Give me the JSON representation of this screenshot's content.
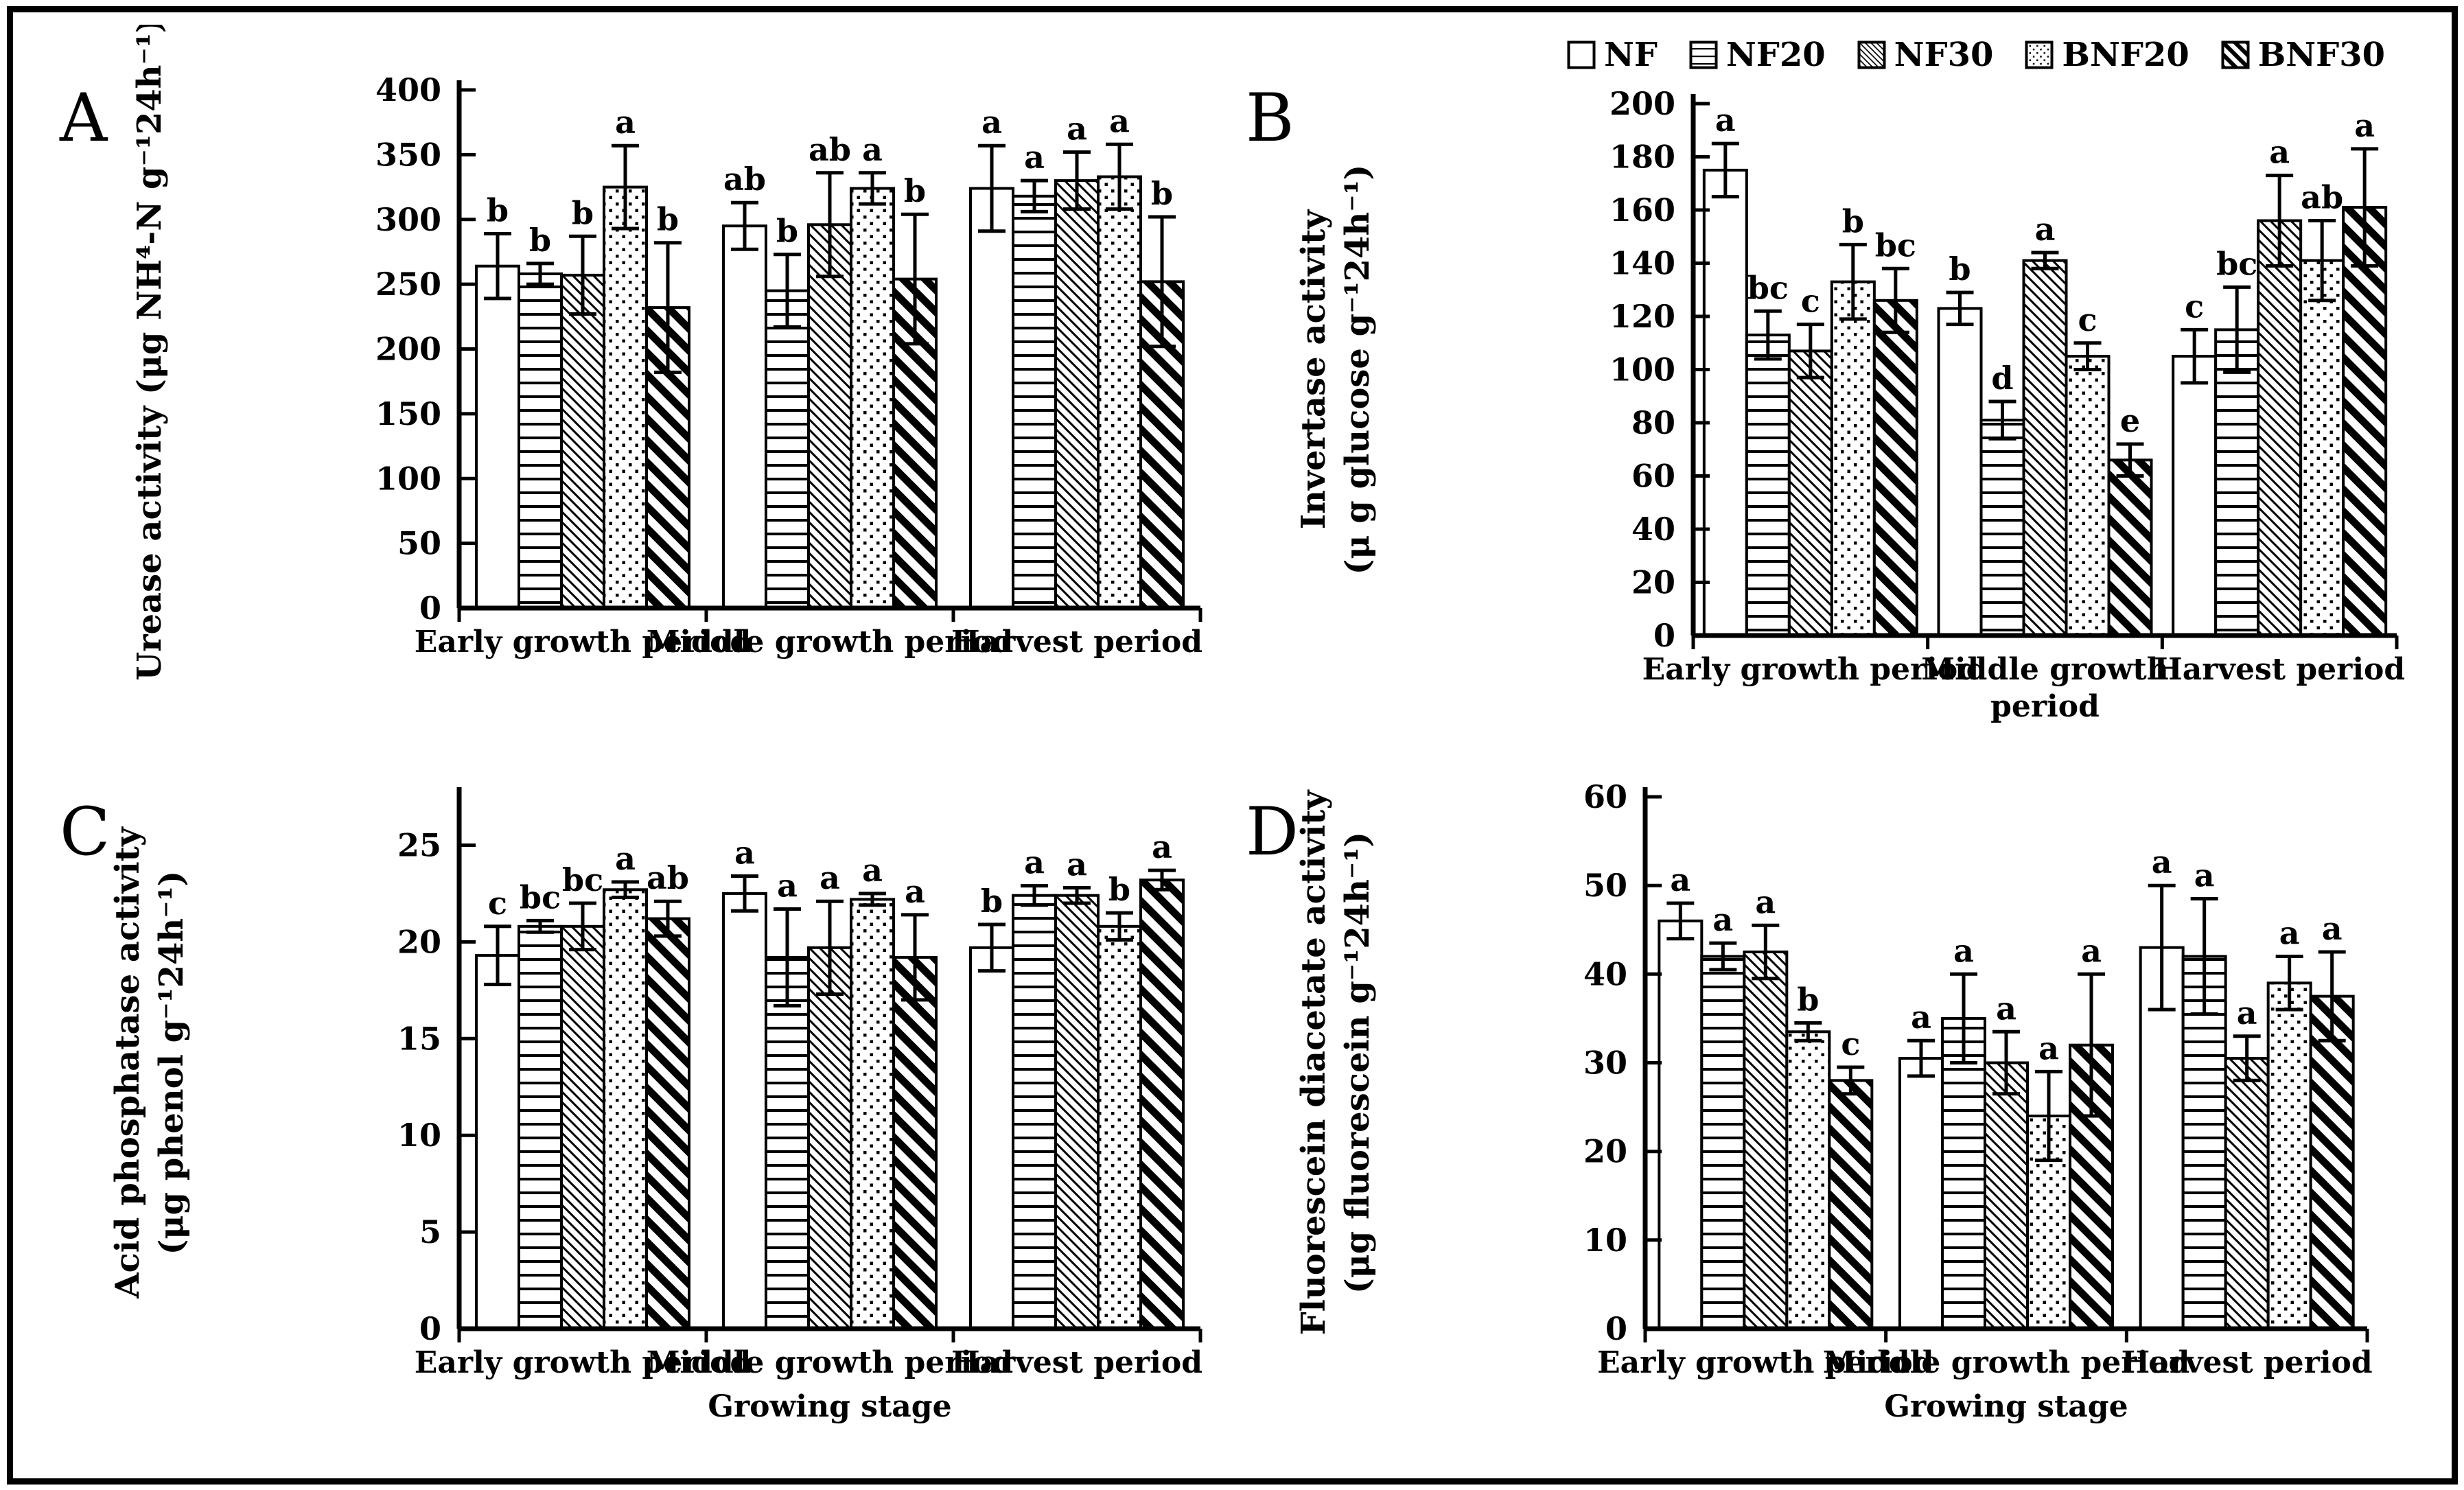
{
  "legend": {
    "items": [
      {
        "label": "NF",
        "pattern": "plain"
      },
      {
        "label": "NF20",
        "pattern": "horizontal-lines"
      },
      {
        "label": "NF30",
        "pattern": "thin-diagonal"
      },
      {
        "label": "BNF20",
        "pattern": "dots"
      },
      {
        "label": "BNF30",
        "pattern": "thick-diagonal"
      }
    ]
  },
  "treatments": [
    "NF",
    "NF20",
    "NF30",
    "BNF20",
    "BNF30"
  ],
  "colors": {
    "ink": "#000000",
    "paper": "#ffffff"
  },
  "chart_data": [
    {
      "type": "bar",
      "panel_letter": "A",
      "ylabel_lines": [
        "Urease activity  (μg NH⁴-N g⁻¹24h⁻¹)"
      ],
      "xlabel": "",
      "ylim": [
        0,
        400
      ],
      "ytick_step": 50,
      "yticks": [
        0,
        50,
        100,
        150,
        200,
        250,
        300,
        350,
        400
      ],
      "grid": false,
      "legend_position": "top-right-of-figure",
      "categories": [
        "Early growth period",
        "Middle growth period",
        "Harvest period"
      ],
      "groups": [
        {
          "category_lines": [
            "Early growth period"
          ],
          "bars": [
            {
              "treatment": "NF",
              "v": 264,
              "e": 25,
              "sig": "b"
            },
            {
              "treatment": "NF20",
              "v": 258,
              "e": 8,
              "sig": "b"
            },
            {
              "treatment": "NF30",
              "v": 257,
              "e": 30,
              "sig": "b"
            },
            {
              "treatment": "BNF20",
              "v": 325,
              "e": 32,
              "sig": "a"
            },
            {
              "treatment": "BNF30",
              "v": 232,
              "e": 50,
              "sig": "b"
            }
          ]
        },
        {
          "category_lines": [
            "Middle growth period"
          ],
          "bars": [
            {
              "treatment": "NF",
              "v": 295,
              "e": 18,
              "sig": "ab"
            },
            {
              "treatment": "NF20",
              "v": 245,
              "e": 28,
              "sig": "b"
            },
            {
              "treatment": "NF30",
              "v": 296,
              "e": 40,
              "sig": "ab"
            },
            {
              "treatment": "BNF20",
              "v": 324,
              "e": 12,
              "sig": "a"
            },
            {
              "treatment": "BNF30",
              "v": 254,
              "e": 50,
              "sig": "b"
            }
          ]
        },
        {
          "category_lines": [
            "Harvest period"
          ],
          "bars": [
            {
              "treatment": "NF",
              "v": 324,
              "e": 33,
              "sig": "a"
            },
            {
              "treatment": "NF20",
              "v": 318,
              "e": 12,
              "sig": "a"
            },
            {
              "treatment": "NF30",
              "v": 330,
              "e": 22,
              "sig": "a"
            },
            {
              "treatment": "BNF20",
              "v": 333,
              "e": 25,
              "sig": "a"
            },
            {
              "treatment": "BNF30",
              "v": 252,
              "e": 50,
              "sig": "b"
            }
          ]
        }
      ]
    },
    {
      "type": "bar",
      "panel_letter": "B",
      "ylabel_lines": [
        "Invertase activity",
        "(μ g glucose g⁻¹24h⁻¹)"
      ],
      "xlabel": "",
      "ylim": [
        0,
        200
      ],
      "ytick_step": 20,
      "yticks": [
        0,
        20,
        40,
        60,
        80,
        100,
        120,
        140,
        160,
        180,
        200
      ],
      "grid": false,
      "categories": [
        "Early growth period",
        "Middle growth period",
        "Harvest period"
      ],
      "groups": [
        {
          "category_lines": [
            "Early growth period"
          ],
          "bars": [
            {
              "treatment": "NF",
              "v": 175,
              "e": 10,
              "sig": "a"
            },
            {
              "treatment": "NF20",
              "v": 113,
              "e": 9,
              "sig": "bc"
            },
            {
              "treatment": "NF30",
              "v": 107,
              "e": 10,
              "sig": "c"
            },
            {
              "treatment": "BNF20",
              "v": 133,
              "e": 14,
              "sig": "b"
            },
            {
              "treatment": "BNF30",
              "v": 126,
              "e": 12,
              "sig": "bc"
            }
          ]
        },
        {
          "category_lines": [
            "Middle growth",
            "period"
          ],
          "bars": [
            {
              "treatment": "NF",
              "v": 123,
              "e": 6,
              "sig": "b"
            },
            {
              "treatment": "NF20",
              "v": 81,
              "e": 7,
              "sig": "d"
            },
            {
              "treatment": "NF30",
              "v": 141,
              "e": 3,
              "sig": "a"
            },
            {
              "treatment": "BNF20",
              "v": 105,
              "e": 5,
              "sig": "c"
            },
            {
              "treatment": "BNF30",
              "v": 66,
              "e": 6,
              "sig": "e"
            }
          ]
        },
        {
          "category_lines": [
            "Harvest period"
          ],
          "bars": [
            {
              "treatment": "NF",
              "v": 105,
              "e": 10,
              "sig": "c"
            },
            {
              "treatment": "NF20",
              "v": 115,
              "e": 16,
              "sig": "bc"
            },
            {
              "treatment": "NF30",
              "v": 156,
              "e": 17,
              "sig": "a"
            },
            {
              "treatment": "BNF20",
              "v": 141,
              "e": 15,
              "sig": "ab"
            },
            {
              "treatment": "BNF30",
              "v": 161,
              "e": 22,
              "sig": "a"
            }
          ]
        }
      ]
    },
    {
      "type": "bar",
      "panel_letter": "C",
      "ylabel_lines": [
        "Acid phosphatase activity",
        "(μg phenol g⁻¹24h⁻¹)"
      ],
      "xlabel": "Growing stage",
      "ylim": [
        0,
        25
      ],
      "ytick_step": 5,
      "yticks": [
        0,
        5,
        10,
        15,
        20,
        25
      ],
      "grid": false,
      "categories": [
        "Early growth period",
        "Middle growth period",
        "Harvest period"
      ],
      "groups": [
        {
          "category_lines": [
            "Early growth period"
          ],
          "bars": [
            {
              "treatment": "NF",
              "v": 19.3,
              "e": 1.5,
              "sig": "c"
            },
            {
              "treatment": "NF20",
              "v": 20.8,
              "e": 0.3,
              "sig": "bc"
            },
            {
              "treatment": "NF30",
              "v": 20.8,
              "e": 1.2,
              "sig": "bc"
            },
            {
              "treatment": "BNF20",
              "v": 22.7,
              "e": 0.4,
              "sig": "a"
            },
            {
              "treatment": "BNF30",
              "v": 21.2,
              "e": 0.9,
              "sig": "ab"
            }
          ]
        },
        {
          "category_lines": [
            "Middle growth period"
          ],
          "bars": [
            {
              "treatment": "NF",
              "v": 22.5,
              "e": 0.9,
              "sig": "a"
            },
            {
              "treatment": "NF20",
              "v": 19.2,
              "e": 2.5,
              "sig": "a"
            },
            {
              "treatment": "NF30",
              "v": 19.7,
              "e": 2.4,
              "sig": "a"
            },
            {
              "treatment": "BNF20",
              "v": 22.2,
              "e": 0.3,
              "sig": "a"
            },
            {
              "treatment": "BNF30",
              "v": 19.2,
              "e": 2.2,
              "sig": "a"
            }
          ]
        },
        {
          "category_lines": [
            "Harvest period"
          ],
          "bars": [
            {
              "treatment": "NF",
              "v": 19.7,
              "e": 1.2,
              "sig": "b"
            },
            {
              "treatment": "NF20",
              "v": 22.4,
              "e": 0.5,
              "sig": "a"
            },
            {
              "treatment": "NF30",
              "v": 22.4,
              "e": 0.4,
              "sig": "a"
            },
            {
              "treatment": "BNF20",
              "v": 20.8,
              "e": 0.7,
              "sig": "b"
            },
            {
              "treatment": "BNF30",
              "v": 23.2,
              "e": 0.5,
              "sig": "a"
            }
          ]
        }
      ]
    },
    {
      "type": "bar",
      "panel_letter": "D",
      "ylabel_lines": [
        "Fluorescein diacetate activity",
        "(μg  fluorescein g⁻¹24h⁻¹)"
      ],
      "xlabel": "Growing stage",
      "ylim": [
        0,
        60
      ],
      "ytick_step": 10,
      "yticks": [
        0,
        10,
        20,
        30,
        40,
        50,
        60
      ],
      "grid": false,
      "categories": [
        "Early growth period",
        "Middle growth period",
        "Harvest period"
      ],
      "groups": [
        {
          "category_lines": [
            "Early growth period"
          ],
          "bars": [
            {
              "treatment": "NF",
              "v": 46,
              "e": 2,
              "sig": "a"
            },
            {
              "treatment": "NF20",
              "v": 42,
              "e": 1.5,
              "sig": "a"
            },
            {
              "treatment": "NF30",
              "v": 42.5,
              "e": 3,
              "sig": "a"
            },
            {
              "treatment": "BNF20",
              "v": 33.5,
              "e": 1,
              "sig": "b"
            },
            {
              "treatment": "BNF30",
              "v": 28,
              "e": 1.5,
              "sig": "c"
            }
          ]
        },
        {
          "category_lines": [
            "Middle growth period"
          ],
          "bars": [
            {
              "treatment": "NF",
              "v": 30.5,
              "e": 2,
              "sig": "a"
            },
            {
              "treatment": "NF20",
              "v": 35,
              "e": 5,
              "sig": "a"
            },
            {
              "treatment": "NF30",
              "v": 30,
              "e": 3.5,
              "sig": "a"
            },
            {
              "treatment": "BNF20",
              "v": 24,
              "e": 5,
              "sig": "a"
            },
            {
              "treatment": "BNF30",
              "v": 32,
              "e": 8,
              "sig": "a"
            }
          ]
        },
        {
          "category_lines": [
            "Harvest period"
          ],
          "bars": [
            {
              "treatment": "NF",
              "v": 43,
              "e": 7,
              "sig": "a"
            },
            {
              "treatment": "NF20",
              "v": 42,
              "e": 6.5,
              "sig": "a"
            },
            {
              "treatment": "NF30",
              "v": 30.5,
              "e": 2.5,
              "sig": "a"
            },
            {
              "treatment": "BNF20",
              "v": 39,
              "e": 3,
              "sig": "a"
            },
            {
              "treatment": "BNF30",
              "v": 37.5,
              "e": 5,
              "sig": "a"
            }
          ]
        }
      ]
    }
  ]
}
